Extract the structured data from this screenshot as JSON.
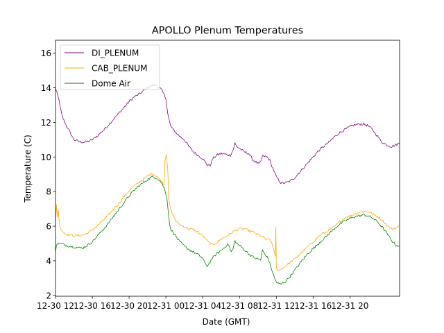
{
  "chart_data": {
    "type": "line",
    "title": "APOLLO Plenum Temperatures",
    "xlabel": "Date (GMT)",
    "ylabel": "Temperature (C)",
    "xlim": [
      9.5,
      46.9
    ],
    "ylim": [
      1.95,
      16.75
    ],
    "y_ticks": [
      2,
      4,
      6,
      8,
      10,
      12,
      14,
      16
    ],
    "x_ticks": [
      {
        "x": 9.5,
        "label": "12-30 12"
      },
      {
        "x": 13.5,
        "label": "12-30 16"
      },
      {
        "x": 17.5,
        "label": "12-30 20"
      },
      {
        "x": 21.5,
        "label": "12-31 00"
      },
      {
        "x": 25.5,
        "label": "12-31 04"
      },
      {
        "x": 29.5,
        "label": "12-31 08"
      },
      {
        "x": 33.5,
        "label": "12-31 12"
      },
      {
        "x": 37.5,
        "label": "12-31 16"
      },
      {
        "x": 41.5,
        "label": "12-31 20"
      }
    ],
    "x_units": "hours since 12-30 00 GMT (approx.)",
    "grid": false,
    "legend_position": "top-left",
    "series": [
      {
        "name": "DI_PLENUM",
        "color": "#800080",
        "x": [
          9.5,
          9.6,
          9.7,
          9.8,
          10.0,
          10.2,
          10.5,
          11.0,
          11.5,
          12.0,
          12.5,
          13.0,
          13.5,
          14.0,
          14.5,
          15.0,
          15.5,
          16.0,
          16.5,
          17.0,
          17.5,
          18.0,
          18.5,
          19.0,
          19.5,
          20.0,
          20.5,
          21.0,
          21.3,
          21.5,
          21.7,
          22.0,
          22.5,
          23.0,
          23.5,
          24.0,
          24.5,
          25.0,
          25.5,
          26.0,
          26.3,
          26.6,
          27.0,
          27.5,
          28.0,
          28.5,
          28.8,
          29.0,
          29.2,
          29.5,
          30.0,
          30.5,
          31.0,
          31.3,
          31.6,
          31.8,
          32.0,
          32.5,
          32.8,
          33.0,
          33.3,
          33.5,
          34.0,
          34.5,
          35.0,
          35.5,
          36.0,
          36.5,
          37.0,
          37.5,
          38.0,
          38.5,
          39.0,
          39.5,
          40.0,
          40.5,
          41.0,
          41.5,
          42.0,
          42.5,
          43.0,
          43.5,
          44.0,
          44.5,
          45.0,
          45.5,
          46.0,
          46.5,
          46.9
        ],
        "y": [
          14.0,
          13.8,
          13.6,
          13.5,
          12.9,
          12.4,
          12.0,
          11.5,
          11.0,
          10.9,
          10.85,
          10.9,
          11.0,
          11.2,
          11.45,
          11.7,
          12.0,
          12.3,
          12.6,
          12.9,
          13.2,
          13.45,
          13.6,
          13.8,
          14.0,
          14.15,
          14.15,
          13.9,
          13.6,
          13.4,
          12.5,
          11.8,
          11.45,
          11.2,
          11.0,
          10.6,
          10.3,
          10.1,
          9.9,
          9.55,
          9.5,
          9.9,
          10.1,
          10.2,
          10.15,
          10.1,
          10.4,
          10.8,
          10.6,
          10.5,
          10.3,
          10.2,
          9.8,
          9.7,
          9.6,
          9.7,
          10.05,
          10.0,
          9.8,
          9.5,
          9.1,
          8.85,
          8.5,
          8.5,
          8.6,
          8.8,
          9.1,
          9.4,
          9.7,
          10.0,
          10.3,
          10.55,
          10.75,
          11.0,
          11.25,
          11.45,
          11.6,
          11.75,
          11.85,
          11.9,
          11.9,
          11.8,
          11.55,
          11.2,
          10.85,
          10.7,
          10.6,
          10.7,
          10.8
        ]
      },
      {
        "name": "CAB_PLENUM",
        "color": "#ffa500",
        "x": [
          9.5,
          9.6,
          9.7,
          9.8,
          9.9,
          10.0,
          10.3,
          10.6,
          11.0,
          11.5,
          12.0,
          12.5,
          13.0,
          13.5,
          14.0,
          14.5,
          15.0,
          15.5,
          16.0,
          16.5,
          17.0,
          17.5,
          18.0,
          18.5,
          19.0,
          19.5,
          20.0,
          20.5,
          21.0,
          21.3,
          21.4,
          21.55,
          21.7,
          21.8,
          22.0,
          22.3,
          22.6,
          23.0,
          23.5,
          24.0,
          24.5,
          25.0,
          25.5,
          26.0,
          26.5,
          27.0,
          27.5,
          28.0,
          28.5,
          29.0,
          29.5,
          30.0,
          30.5,
          31.0,
          31.5,
          32.0,
          32.5,
          32.8,
          33.0,
          33.2,
          33.4,
          33.45,
          33.5,
          33.6,
          34.0,
          34.5,
          35.0,
          35.5,
          36.0,
          36.5,
          37.0,
          37.5,
          38.0,
          38.5,
          39.0,
          39.5,
          40.0,
          40.5,
          41.0,
          41.5,
          42.0,
          42.5,
          43.0,
          43.5,
          44.0,
          44.5,
          45.0,
          45.5,
          46.0,
          46.5,
          46.9
        ],
        "y": [
          6.1,
          7.3,
          6.5,
          6.9,
          6.3,
          5.9,
          5.7,
          5.55,
          5.5,
          5.45,
          5.45,
          5.5,
          5.6,
          5.8,
          6.0,
          6.25,
          6.5,
          6.8,
          7.1,
          7.4,
          7.75,
          8.05,
          8.3,
          8.5,
          8.7,
          8.9,
          9.05,
          8.9,
          8.6,
          8.4,
          9.8,
          10.2,
          9.3,
          7.6,
          7.0,
          6.6,
          6.3,
          6.1,
          5.95,
          5.85,
          5.8,
          5.65,
          5.45,
          5.15,
          4.9,
          5.05,
          5.25,
          5.4,
          5.55,
          5.75,
          5.85,
          5.85,
          5.75,
          5.65,
          5.5,
          5.4,
          5.2,
          5.25,
          5.0,
          4.65,
          4.3,
          5.9,
          3.6,
          3.45,
          3.5,
          3.7,
          3.9,
          4.1,
          4.35,
          4.6,
          4.85,
          5.1,
          5.35,
          5.55,
          5.7,
          5.85,
          6.05,
          6.3,
          6.5,
          6.6,
          6.7,
          6.8,
          6.85,
          6.85,
          6.7,
          6.55,
          6.35,
          6.05,
          5.85,
          5.9,
          6.0
        ]
      },
      {
        "name": "Dome Air",
        "color": "#008000",
        "x": [
          9.5,
          9.6,
          9.8,
          10.0,
          10.3,
          10.6,
          11.0,
          11.5,
          12.0,
          12.5,
          13.0,
          13.5,
          14.0,
          14.5,
          15.0,
          15.5,
          16.0,
          16.5,
          17.0,
          17.5,
          18.0,
          18.5,
          19.0,
          19.5,
          20.0,
          20.5,
          21.0,
          21.3,
          21.6,
          21.8,
          22.0,
          22.3,
          22.6,
          23.0,
          23.5,
          24.0,
          24.5,
          25.0,
          25.5,
          25.8,
          26.0,
          26.5,
          27.0,
          27.5,
          28.0,
          28.3,
          28.6,
          28.8,
          29.0,
          29.3,
          29.6,
          30.0,
          30.5,
          31.0,
          31.5,
          31.8,
          32.0,
          32.3,
          32.6,
          33.0,
          33.3,
          33.6,
          34.0,
          34.5,
          35.0,
          35.5,
          36.0,
          36.5,
          37.0,
          37.5,
          38.0,
          38.5,
          39.0,
          39.5,
          40.0,
          40.5,
          41.0,
          41.5,
          42.0,
          42.5,
          43.0,
          43.5,
          44.0,
          44.5,
          45.0,
          45.5,
          46.0,
          46.5,
          46.9
        ],
        "y": [
          4.6,
          4.9,
          5.0,
          5.0,
          4.95,
          4.9,
          4.85,
          4.8,
          4.75,
          4.75,
          4.9,
          5.1,
          5.4,
          5.7,
          6.0,
          6.35,
          6.7,
          7.05,
          7.4,
          7.75,
          8.05,
          8.3,
          8.5,
          8.7,
          8.85,
          8.8,
          8.55,
          8.2,
          7.7,
          6.6,
          5.8,
          5.65,
          5.4,
          5.1,
          4.85,
          4.65,
          4.5,
          4.35,
          4.15,
          3.8,
          3.7,
          4.1,
          4.4,
          4.6,
          4.85,
          4.95,
          4.5,
          4.7,
          5.15,
          4.95,
          4.85,
          4.65,
          4.4,
          4.2,
          4.1,
          4.05,
          4.6,
          4.35,
          4.15,
          3.5,
          3.0,
          2.7,
          2.65,
          2.8,
          3.1,
          3.45,
          3.8,
          4.15,
          4.45,
          4.7,
          4.95,
          5.2,
          5.45,
          5.7,
          5.95,
          6.15,
          6.3,
          6.45,
          6.55,
          6.6,
          6.65,
          6.6,
          6.45,
          6.25,
          5.95,
          5.6,
          5.2,
          4.9,
          4.85
        ]
      }
    ]
  }
}
